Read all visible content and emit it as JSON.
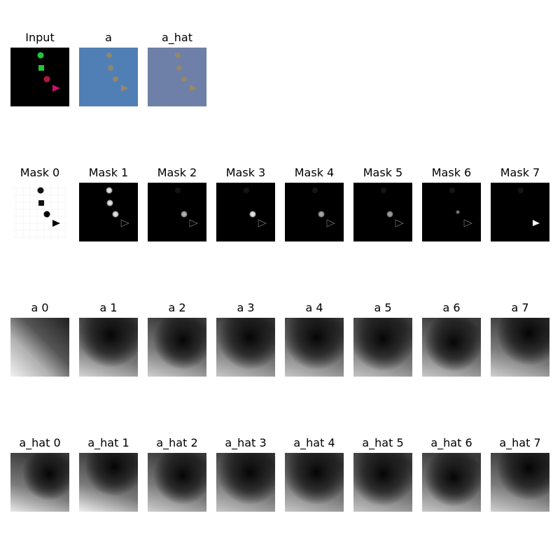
{
  "rows": [
    {
      "name": "inputs",
      "panels": [
        {
          "title": "Input",
          "kind": "input"
        },
        {
          "title": "a",
          "kind": "recon",
          "bg": "#4f7fb4"
        },
        {
          "title": "a_hat",
          "kind": "recon",
          "bg": "#6e7fa8"
        }
      ]
    },
    {
      "name": "masks",
      "panels": [
        {
          "title": "Mask 0",
          "kind": "mask0"
        },
        {
          "title": "Mask 1",
          "kind": "mask",
          "show": [
            "circle-top",
            "square",
            "circle-mid"
          ],
          "bright": 0.95,
          "tri": "outline"
        },
        {
          "title": "Mask 2",
          "kind": "mask",
          "show": [
            "circle-mid"
          ],
          "bright": 0.75,
          "tri": "outline"
        },
        {
          "title": "Mask 3",
          "kind": "mask",
          "show": [
            "circle-mid"
          ],
          "bright": 0.95,
          "tri": "outline"
        },
        {
          "title": "Mask 4",
          "kind": "mask",
          "show": [
            "circle-mid"
          ],
          "bright": 0.7,
          "tri": "outline"
        },
        {
          "title": "Mask 5",
          "kind": "mask",
          "show": [
            "circle-mid"
          ],
          "bright": 0.65,
          "tri": "outline"
        },
        {
          "title": "Mask 6",
          "kind": "mask",
          "show": [
            "circle-mid-faint"
          ],
          "bright": 0.5,
          "tri": "outline"
        },
        {
          "title": "Mask 7",
          "kind": "mask",
          "show": [],
          "bright": 1,
          "tri": "solid"
        }
      ]
    },
    {
      "name": "a-row",
      "panels": [
        {
          "title": "a 0",
          "kind": "diag"
        },
        {
          "title": "a 1",
          "kind": "grad",
          "variant": 1
        },
        {
          "title": "a 2",
          "kind": "grad",
          "variant": 2
        },
        {
          "title": "a 3",
          "kind": "grad",
          "variant": 3
        },
        {
          "title": "a 4",
          "kind": "grad",
          "variant": 4
        },
        {
          "title": "a 5",
          "kind": "grad",
          "variant": 5
        },
        {
          "title": "a 6",
          "kind": "grad",
          "variant": 6
        },
        {
          "title": "a 7",
          "kind": "grad",
          "variant": 7
        }
      ]
    },
    {
      "name": "a-hat-row",
      "panels": [
        {
          "title": "a_hat 0",
          "kind": "grad",
          "variant": 0
        },
        {
          "title": "a_hat 1",
          "kind": "grad",
          "variant": 8
        },
        {
          "title": "a_hat 2",
          "kind": "grad",
          "variant": 2
        },
        {
          "title": "a_hat 3",
          "kind": "grad",
          "variant": 3
        },
        {
          "title": "a_hat 4",
          "kind": "grad",
          "variant": 4
        },
        {
          "title": "a_hat 5",
          "kind": "grad",
          "variant": 5
        },
        {
          "title": "a_hat 6",
          "kind": "grad",
          "variant": 6
        },
        {
          "title": "a_hat 7",
          "kind": "grad",
          "variant": 7
        }
      ]
    }
  ],
  "colors": {
    "input_bg": "#000000",
    "green": "#22c33c",
    "red": "#b0183a",
    "magenta": "#d0106a",
    "recon_shape": "#a08a5a"
  }
}
